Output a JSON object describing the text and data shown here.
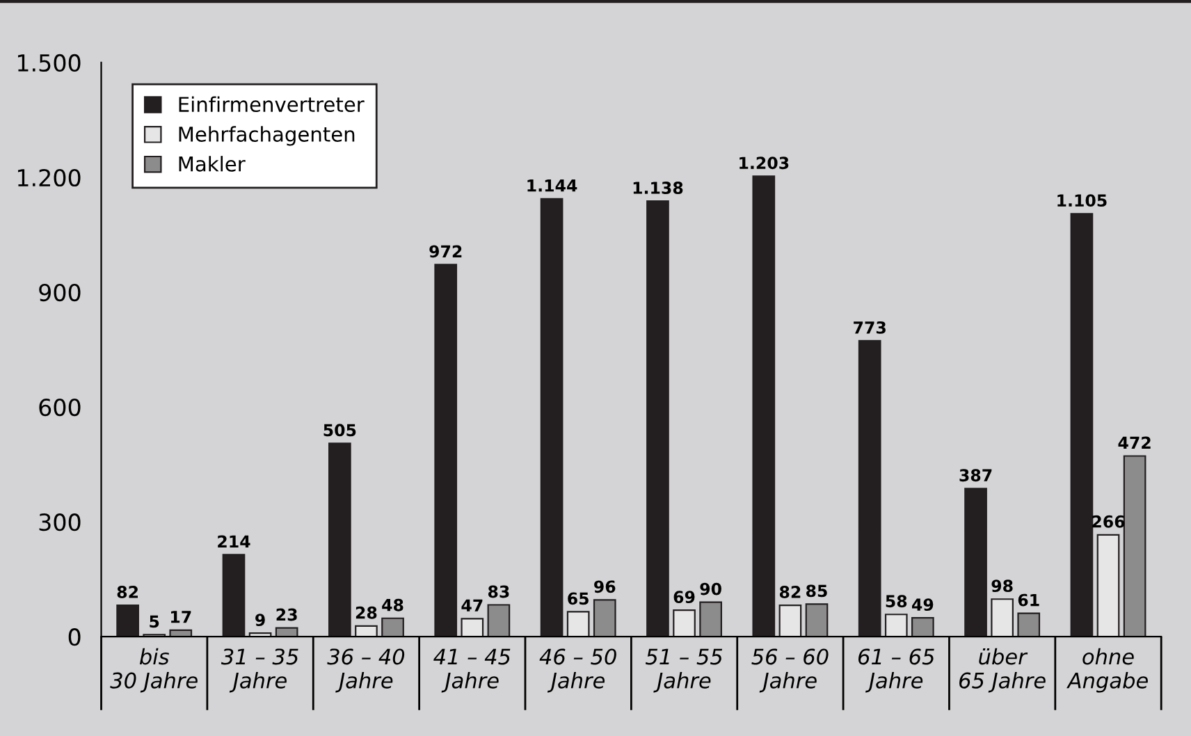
{
  "chart_data": {
    "type": "bar",
    "categories": [
      "bis\n30 Jahre",
      "31 – 35\nJahre",
      "36 – 40\nJahre",
      "41 – 45\nJahre",
      "46 – 50\nJahre",
      "51 – 55\nJahre",
      "56 – 60\nJahre",
      "61 – 65\nJahre",
      "über\n65 Jahre",
      "ohne\nAngabe"
    ],
    "series": [
      {
        "name": "Einfirmenvertreter",
        "color": "#231f20",
        "values": [
          82,
          214,
          505,
          972,
          1144,
          1138,
          1203,
          773,
          387,
          1105
        ],
        "value_labels": [
          "82",
          "214",
          "505",
          "972",
          "1.144",
          "1.138",
          "1.203",
          "773",
          "387",
          "1.105"
        ]
      },
      {
        "name": "Mehrfachagenten",
        "color": "#e6e6e6",
        "values": [
          5,
          9,
          28,
          47,
          65,
          69,
          82,
          58,
          98,
          266
        ],
        "value_labels": [
          "5",
          "9",
          "28",
          "47",
          "65",
          "69",
          "82",
          "58",
          "98",
          "266"
        ]
      },
      {
        "name": "Makler",
        "color": "#8c8c8c",
        "values": [
          17,
          23,
          48,
          83,
          96,
          90,
          85,
          49,
          61,
          472
        ],
        "value_labels": [
          "17",
          "23",
          "48",
          "83",
          "96",
          "90",
          "85",
          "49",
          "61",
          "472"
        ]
      }
    ],
    "ylim": [
      0,
      1500
    ],
    "yticks": [
      0,
      {
        "value": 300,
        "label": "300"
      },
      {
        "value": 600,
        "label": "600"
      },
      {
        "value": 900,
        "label": "900"
      },
      {
        "value": 1200,
        "label": "1.200"
      },
      {
        "value": 1500,
        "label": "1.500"
      }
    ],
    "legend": "top left",
    "grid": false
  }
}
